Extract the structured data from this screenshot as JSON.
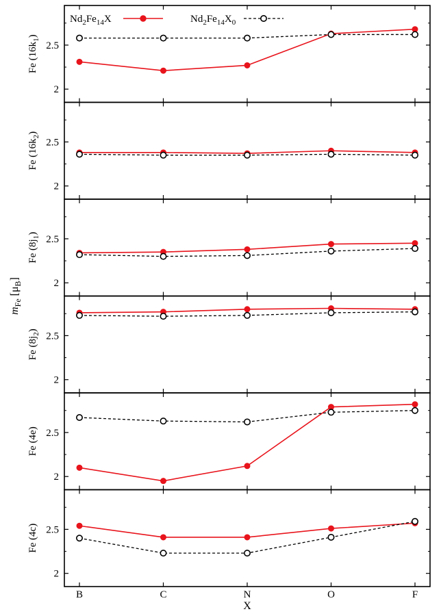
{
  "chart_data": {
    "type": "line",
    "categories": [
      "B",
      "C",
      "N",
      "O",
      "F"
    ],
    "xlabel": "X",
    "ylabel": "m_Fe [μ_B]",
    "ylim": [
      1.85,
      2.95
    ],
    "yticks": [
      2,
      2.5
    ],
    "legend": {
      "placement": "top",
      "entries": [
        {
          "name": "Nd2Fe14X",
          "color": "#e8141c",
          "style": "solid",
          "marker": "filled-circle"
        },
        {
          "name": "Nd2Fe14X0",
          "color": "#000000",
          "style": "dashed",
          "marker": "open-circle"
        }
      ]
    },
    "panels": [
      {
        "label": "Fe (16k1)",
        "series": [
          {
            "name": "Nd2Fe14X",
            "values": [
              2.31,
              2.21,
              2.27,
              2.63,
              2.68
            ]
          },
          {
            "name": "Nd2Fe14X0",
            "values": [
              2.58,
              2.58,
              2.58,
              2.62,
              2.62
            ]
          }
        ]
      },
      {
        "label": "Fe (16k2)",
        "series": [
          {
            "name": "Nd2Fe14X",
            "values": [
              2.38,
              2.38,
              2.37,
              2.4,
              2.38
            ]
          },
          {
            "name": "Nd2Fe14X0",
            "values": [
              2.36,
              2.35,
              2.35,
              2.36,
              2.35
            ]
          }
        ]
      },
      {
        "label": "Fe (8j1)",
        "series": [
          {
            "name": "Nd2Fe14X",
            "values": [
              2.34,
              2.35,
              2.38,
              2.44,
              2.45
            ]
          },
          {
            "name": "Nd2Fe14X0",
            "values": [
              2.32,
              2.3,
              2.31,
              2.36,
              2.39
            ]
          }
        ]
      },
      {
        "label": "Fe (8j2)",
        "series": [
          {
            "name": "Nd2Fe14X",
            "values": [
              2.76,
              2.77,
              2.8,
              2.81,
              2.8
            ]
          },
          {
            "name": "Nd2Fe14X0",
            "values": [
              2.73,
              2.72,
              2.73,
              2.76,
              2.77
            ]
          }
        ]
      },
      {
        "label": "Fe (4e)",
        "series": [
          {
            "name": "Nd2Fe14X",
            "values": [
              2.1,
              1.95,
              2.12,
              2.79,
              2.82
            ]
          },
          {
            "name": "Nd2Fe14X0",
            "values": [
              2.67,
              2.63,
              2.62,
              2.73,
              2.75
            ]
          }
        ]
      },
      {
        "label": "Fe (4c)",
        "series": [
          {
            "name": "Nd2Fe14X",
            "values": [
              2.54,
              2.41,
              2.41,
              2.51,
              2.57
            ]
          },
          {
            "name": "Nd2Fe14X0",
            "values": [
              2.4,
              2.23,
              2.23,
              2.41,
              2.59
            ]
          }
        ]
      }
    ]
  }
}
